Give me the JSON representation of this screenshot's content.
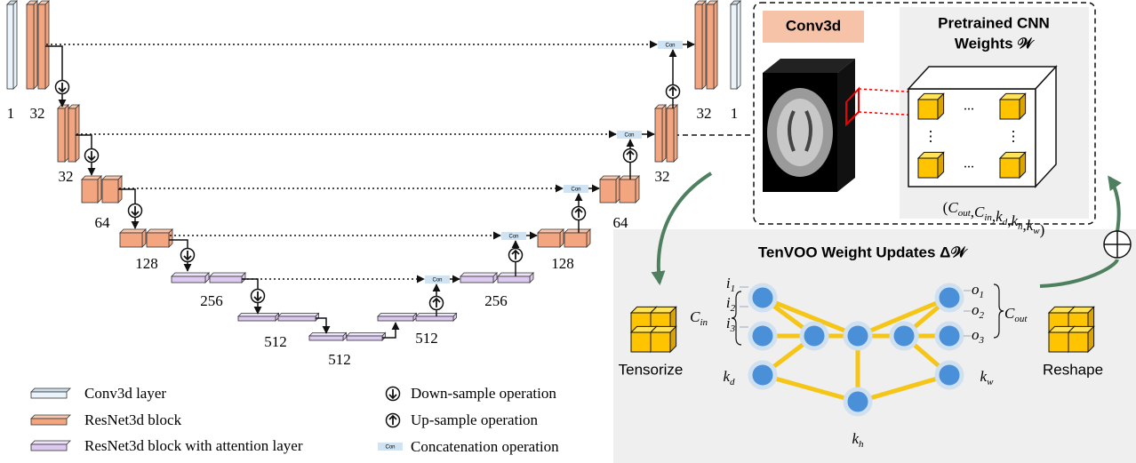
{
  "unet": {
    "encoder_labels": [
      "1",
      "32",
      "32",
      "64",
      "128",
      "256",
      "512"
    ],
    "bottleneck_label": "512",
    "decoder_labels": [
      "512",
      "256",
      "128",
      "64",
      "32",
      "32",
      "1"
    ],
    "concat_labels": [
      "Con",
      "Con",
      "Con",
      "Con",
      "Con",
      "Con"
    ]
  },
  "legend": [
    {
      "label": "Conv3d layer"
    },
    {
      "label": "ResNet3d block"
    },
    {
      "label": "ResNet3d block with attention layer"
    },
    {
      "label": "Down-sample operation"
    },
    {
      "label": "Up-sample operation"
    },
    {
      "label": "Concatenation operation",
      "icon_text": "Con"
    }
  ],
  "pretrained": {
    "op_label": "Conv3d",
    "title_line1": "Pretrained CNN",
    "title_line2": "Weights 𝒲",
    "ellipsis_h": [
      "...",
      "..."
    ],
    "ellipsis_v": [
      "⋮",
      "⋮"
    ],
    "shape": {
      "open": "(",
      "sep": ",",
      "close": ")",
      "parts": [
        {
          "base": "C",
          "sub": "out"
        },
        {
          "base": "C",
          "sub": "in"
        },
        {
          "base": "k",
          "sub": "d"
        },
        {
          "base": "k",
          "sub": "h"
        },
        {
          "base": "k",
          "sub": "w"
        }
      ]
    }
  },
  "tenvoo": {
    "title": "TenVOO Weight Updates Δ𝒲",
    "tensorize": "Tensorize",
    "reshape": "Reshape",
    "inputs": [
      {
        "base": "i",
        "sub": "1"
      },
      {
        "base": "i",
        "sub": "2"
      },
      {
        "base": "i",
        "sub": "3"
      }
    ],
    "c_in": {
      "base": "C",
      "sub": "in"
    },
    "outputs": [
      {
        "base": "o",
        "sub": "1"
      },
      {
        "base": "o",
        "sub": "2"
      },
      {
        "base": "o",
        "sub": "3"
      }
    ],
    "c_out": {
      "base": "C",
      "sub": "out"
    },
    "k_d": {
      "base": "k",
      "sub": "d"
    },
    "k_w": {
      "base": "k",
      "sub": "w"
    },
    "k_h": {
      "base": "k",
      "sub": "h"
    }
  }
}
